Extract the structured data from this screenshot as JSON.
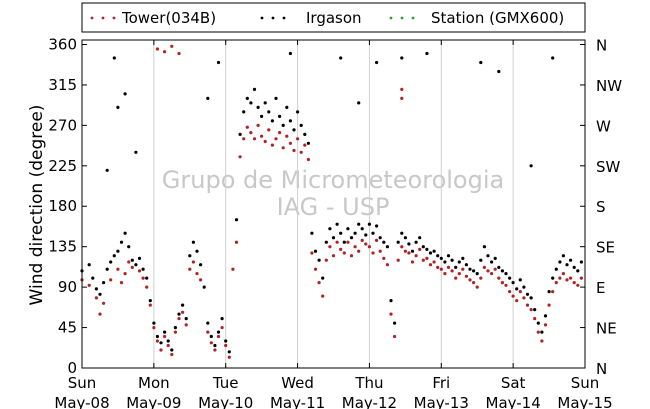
{
  "chart_data": {
    "type": "scatter",
    "ylabel": "Wind direction (degree)",
    "ylim": [
      0,
      365
    ],
    "xlim": [
      0,
      7
    ],
    "grid": "vertical",
    "legend_position": "top",
    "yticks": [
      0,
      45,
      90,
      135,
      180,
      225,
      270,
      315,
      360
    ],
    "yticks_right": [
      {
        "value": 0,
        "label": "N"
      },
      {
        "value": 45,
        "label": "NE"
      },
      {
        "value": 90,
        "label": "E"
      },
      {
        "value": 135,
        "label": "SE"
      },
      {
        "value": 180,
        "label": "S"
      },
      {
        "value": 225,
        "label": "SW"
      },
      {
        "value": 270,
        "label": "W"
      },
      {
        "value": 315,
        "label": "NW"
      },
      {
        "value": 360,
        "label": "N"
      }
    ],
    "xticks": [
      {
        "day": 0,
        "weekday": "Sun",
        "date": "May-08"
      },
      {
        "day": 1,
        "weekday": "Mon",
        "date": "May-09"
      },
      {
        "day": 2,
        "weekday": "Tue",
        "date": "May-10"
      },
      {
        "day": 3,
        "weekday": "Wed",
        "date": "May-11"
      },
      {
        "day": 4,
        "weekday": "Thu",
        "date": "May-12"
      },
      {
        "day": 5,
        "weekday": "Fri",
        "date": "May-13"
      },
      {
        "day": 6,
        "weekday": "Sat",
        "date": "May-14"
      },
      {
        "day": 7,
        "weekday": "Sun",
        "date": "May-15"
      }
    ],
    "series": [
      {
        "name": "Tower(034B)",
        "color": "#b22222",
        "values": [
          [
            0.0,
            98
          ],
          [
            0.1,
            92
          ],
          [
            0.2,
            78
          ],
          [
            0.25,
            60
          ],
          [
            0.3,
            72
          ],
          [
            0.4,
            98
          ],
          [
            0.5,
            110
          ],
          [
            0.55,
            95
          ],
          [
            0.6,
            105
          ],
          [
            0.65,
            118
          ],
          [
            0.7,
            112
          ],
          [
            0.8,
            108
          ],
          [
            0.85,
            100
          ],
          [
            0.9,
            90
          ],
          [
            0.95,
            70
          ],
          [
            1.0,
            45
          ],
          [
            1.05,
            30
          ],
          [
            1.1,
            20
          ],
          [
            1.15,
            35
          ],
          [
            1.2,
            25
          ],
          [
            1.25,
            15
          ],
          [
            1.3,
            40
          ],
          [
            1.35,
            55
          ],
          [
            1.4,
            62
          ],
          [
            1.45,
            48
          ],
          [
            1.5,
            110
          ],
          [
            1.55,
            118
          ],
          [
            1.6,
            105
          ],
          [
            1.65,
            98
          ],
          [
            1.75,
            40
          ],
          [
            1.8,
            28
          ],
          [
            1.85,
            20
          ],
          [
            1.9,
            35
          ],
          [
            1.95,
            45
          ],
          [
            2.0,
            25
          ],
          [
            2.05,
            12
          ],
          [
            2.1,
            110
          ],
          [
            2.15,
            140
          ],
          [
            2.2,
            235
          ],
          [
            2.25,
            255
          ],
          [
            2.3,
            268
          ],
          [
            2.35,
            262
          ],
          [
            2.4,
            255
          ],
          [
            2.45,
            270
          ],
          [
            2.5,
            258
          ],
          [
            2.55,
            252
          ],
          [
            2.6,
            265
          ],
          [
            2.65,
            248
          ],
          [
            2.7,
            255
          ],
          [
            2.75,
            262
          ],
          [
            2.8,
            245
          ],
          [
            2.85,
            258
          ],
          [
            2.9,
            250
          ],
          [
            2.95,
            242
          ],
          [
            3.0,
            255
          ],
          [
            3.05,
            240
          ],
          [
            3.1,
            248
          ],
          [
            3.15,
            232
          ],
          [
            3.2,
            128
          ],
          [
            3.25,
            110
          ],
          [
            3.3,
            95
          ],
          [
            3.35,
            80
          ],
          [
            3.4,
            120
          ],
          [
            3.45,
            135
          ],
          [
            3.5,
            125
          ],
          [
            3.55,
            140
          ],
          [
            3.6,
            132
          ],
          [
            3.65,
            128
          ],
          [
            3.7,
            140
          ],
          [
            3.75,
            125
          ],
          [
            3.8,
            135
          ],
          [
            3.85,
            130
          ],
          [
            3.9,
            142
          ],
          [
            3.95,
            138
          ],
          [
            4.0,
            135
          ],
          [
            4.05,
            128
          ],
          [
            4.1,
            142
          ],
          [
            4.15,
            130
          ],
          [
            4.2,
            122
          ],
          [
            4.25,
            115
          ],
          [
            4.3,
            60
          ],
          [
            4.35,
            35
          ],
          [
            4.4,
            120
          ],
          [
            4.45,
            135
          ],
          [
            4.5,
            130
          ],
          [
            4.55,
            128
          ],
          [
            4.6,
            118
          ],
          [
            4.65,
            125
          ],
          [
            4.7,
            132
          ],
          [
            4.75,
            120
          ],
          [
            4.8,
            122
          ],
          [
            4.85,
            115
          ],
          [
            4.9,
            118
          ],
          [
            4.95,
            112
          ],
          [
            5.0,
            110
          ],
          [
            5.05,
            105
          ],
          [
            5.1,
            112
          ],
          [
            5.15,
            108
          ],
          [
            5.2,
            100
          ],
          [
            5.25,
            105
          ],
          [
            5.3,
            110
          ],
          [
            5.35,
            102
          ],
          [
            5.4,
            98
          ],
          [
            5.45,
            95
          ],
          [
            5.5,
            90
          ],
          [
            5.55,
            100
          ],
          [
            5.6,
            112
          ],
          [
            5.65,
            108
          ],
          [
            5.7,
            105
          ],
          [
            5.75,
            110
          ],
          [
            5.8,
            100
          ],
          [
            5.85,
            95
          ],
          [
            5.9,
            92
          ],
          [
            5.95,
            85
          ],
          [
            6.0,
            80
          ],
          [
            6.05,
            75
          ],
          [
            6.1,
            85
          ],
          [
            6.15,
            78
          ],
          [
            6.2,
            70
          ],
          [
            6.25,
            65
          ],
          [
            6.3,
            55
          ],
          [
            6.35,
            40
          ],
          [
            6.4,
            30
          ],
          [
            6.45,
            48
          ],
          [
            6.5,
            70
          ],
          [
            6.55,
            85
          ],
          [
            6.6,
            95
          ],
          [
            6.65,
            100
          ],
          [
            6.7,
            105
          ],
          [
            6.75,
            98
          ],
          [
            6.8,
            100
          ],
          [
            6.85,
            95
          ],
          [
            6.9,
            92
          ],
          [
            6.95,
            100
          ],
          [
            1.05,
            355
          ],
          [
            1.15,
            352
          ],
          [
            1.25,
            358
          ],
          [
            1.35,
            350
          ],
          [
            4.45,
            310
          ],
          [
            4.45,
            300
          ]
        ]
      },
      {
        "name": "Irgason",
        "color": "#000000",
        "values": [
          [
            0.0,
            108
          ],
          [
            0.1,
            115
          ],
          [
            0.15,
            100
          ],
          [
            0.2,
            88
          ],
          [
            0.25,
            82
          ],
          [
            0.3,
            95
          ],
          [
            0.35,
            110
          ],
          [
            0.4,
            118
          ],
          [
            0.45,
            125
          ],
          [
            0.5,
            130
          ],
          [
            0.55,
            140
          ],
          [
            0.6,
            150
          ],
          [
            0.65,
            135
          ],
          [
            0.7,
            120
          ],
          [
            0.75,
            115
          ],
          [
            0.8,
            122
          ],
          [
            0.85,
            110
          ],
          [
            0.9,
            100
          ],
          [
            0.95,
            75
          ],
          [
            1.0,
            50
          ],
          [
            1.05,
            35
          ],
          [
            1.1,
            28
          ],
          [
            1.15,
            40
          ],
          [
            1.2,
            30
          ],
          [
            1.25,
            20
          ],
          [
            1.3,
            45
          ],
          [
            1.35,
            60
          ],
          [
            1.4,
            70
          ],
          [
            1.45,
            55
          ],
          [
            1.5,
            125
          ],
          [
            1.55,
            140
          ],
          [
            1.6,
            130
          ],
          [
            1.65,
            115
          ],
          [
            1.7,
            90
          ],
          [
            1.75,
            50
          ],
          [
            1.8,
            35
          ],
          [
            1.85,
            25
          ],
          [
            1.9,
            40
          ],
          [
            1.95,
            55
          ],
          [
            2.0,
            30
          ],
          [
            2.05,
            18
          ],
          [
            2.15,
            165
          ],
          [
            2.2,
            260
          ],
          [
            2.25,
            285
          ],
          [
            2.3,
            300
          ],
          [
            2.35,
            295
          ],
          [
            2.4,
            310
          ],
          [
            2.45,
            290
          ],
          [
            2.5,
            280
          ],
          [
            2.55,
            295
          ],
          [
            2.6,
            285
          ],
          [
            2.65,
            275
          ],
          [
            2.7,
            300
          ],
          [
            2.75,
            280
          ],
          [
            2.8,
            270
          ],
          [
            2.85,
            290
          ],
          [
            2.9,
            275
          ],
          [
            2.95,
            265
          ],
          [
            3.0,
            285
          ],
          [
            3.05,
            270
          ],
          [
            3.1,
            260
          ],
          [
            3.15,
            250
          ],
          [
            3.2,
            150
          ],
          [
            3.25,
            130
          ],
          [
            3.3,
            120
          ],
          [
            3.35,
            100
          ],
          [
            3.4,
            140
          ],
          [
            3.45,
            155
          ],
          [
            3.5,
            145
          ],
          [
            3.55,
            160
          ],
          [
            3.6,
            150
          ],
          [
            3.65,
            140
          ],
          [
            3.7,
            155
          ],
          [
            3.75,
            145
          ],
          [
            3.8,
            150
          ],
          [
            3.85,
            160
          ],
          [
            3.9,
            155
          ],
          [
            3.95,
            148
          ],
          [
            4.0,
            160
          ],
          [
            4.05,
            150
          ],
          [
            4.1,
            158
          ],
          [
            4.15,
            145
          ],
          [
            4.2,
            140
          ],
          [
            4.25,
            135
          ],
          [
            4.3,
            75
          ],
          [
            4.35,
            50
          ],
          [
            4.4,
            140
          ],
          [
            4.45,
            150
          ],
          [
            4.5,
            145
          ],
          [
            4.55,
            138
          ],
          [
            4.6,
            130
          ],
          [
            4.65,
            140
          ],
          [
            4.7,
            145
          ],
          [
            4.75,
            135
          ],
          [
            4.8,
            132
          ],
          [
            4.85,
            128
          ],
          [
            4.9,
            130
          ],
          [
            4.95,
            125
          ],
          [
            5.0,
            122
          ],
          [
            5.05,
            118
          ],
          [
            5.1,
            125
          ],
          [
            5.15,
            120
          ],
          [
            5.2,
            112
          ],
          [
            5.25,
            118
          ],
          [
            5.3,
            122
          ],
          [
            5.35,
            115
          ],
          [
            5.4,
            110
          ],
          [
            5.45,
            108
          ],
          [
            5.5,
            105
          ],
          [
            5.55,
            120
          ],
          [
            5.6,
            135
          ],
          [
            5.65,
            125
          ],
          [
            5.7,
            118
          ],
          [
            5.75,
            122
          ],
          [
            5.8,
            112
          ],
          [
            5.85,
            108
          ],
          [
            5.9,
            105
          ],
          [
            5.95,
            100
          ],
          [
            6.0,
            95
          ],
          [
            6.05,
            88
          ],
          [
            6.1,
            98
          ],
          [
            6.15,
            90
          ],
          [
            6.2,
            82
          ],
          [
            6.25,
            78
          ],
          [
            6.3,
            65
          ],
          [
            6.35,
            50
          ],
          [
            6.4,
            40
          ],
          [
            6.45,
            58
          ],
          [
            6.5,
            85
          ],
          [
            6.55,
            100
          ],
          [
            6.6,
            110
          ],
          [
            6.65,
            118
          ],
          [
            6.7,
            125
          ],
          [
            6.75,
            115
          ],
          [
            6.8,
            120
          ],
          [
            6.85,
            112
          ],
          [
            6.9,
            108
          ],
          [
            6.95,
            118
          ],
          [
            0.45,
            345
          ],
          [
            0.5,
            290
          ],
          [
            0.6,
            305
          ],
          [
            0.75,
            240
          ],
          [
            1.75,
            300
          ],
          [
            1.9,
            340
          ],
          [
            2.9,
            350
          ],
          [
            3.6,
            345
          ],
          [
            4.1,
            340
          ],
          [
            4.45,
            345
          ],
          [
            4.8,
            350
          ],
          [
            5.55,
            340
          ],
          [
            5.8,
            330
          ],
          [
            6.25,
            225
          ],
          [
            6.55,
            345
          ],
          [
            0.35,
            220
          ],
          [
            3.85,
            295
          ]
        ]
      },
      {
        "name": "Station (GMX600)",
        "color": "#2ca02c",
        "values": []
      }
    ]
  },
  "watermark": {
    "line1": "Grupo de Micrometeorologia",
    "line2": "IAG - USP"
  }
}
